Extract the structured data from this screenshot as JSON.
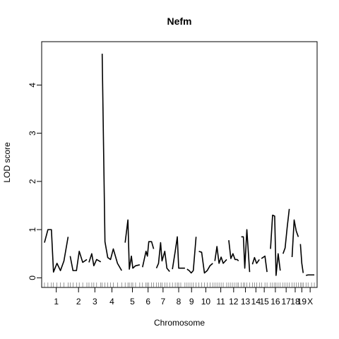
{
  "chart_data": {
    "type": "line",
    "title": "Nefm",
    "xlabel": "Chromosome",
    "ylabel": "LOD score",
    "ylim": [
      -0.2,
      4.9
    ],
    "y_ticks": [
      0,
      1,
      2,
      3,
      4
    ],
    "grid": false,
    "legend": "none",
    "line_color": "#000000",
    "chromosomes": [
      {
        "label": "1",
        "start": 1,
        "end": 35,
        "x": [
          1,
          6,
          11,
          14,
          19,
          24,
          29,
          35
        ],
        "y": [
          0.73,
          1.0,
          1.0,
          0.12,
          0.3,
          0.15,
          0.35,
          0.85
        ]
      },
      {
        "label": "2",
        "start": 38,
        "end": 62,
        "x": [
          38,
          42,
          47,
          51,
          56,
          62
        ],
        "y": [
          0.45,
          0.15,
          0.15,
          0.55,
          0.32,
          0.38
        ]
      },
      {
        "label": "3",
        "start": 65,
        "end": 82,
        "x": [
          65,
          69,
          72,
          76,
          82
        ],
        "y": [
          0.32,
          0.5,
          0.25,
          0.38,
          0.33
        ]
      },
      {
        "label": "4",
        "start": 84,
        "end": 112,
        "x": [
          84,
          88,
          92,
          96,
          100,
          106,
          112
        ],
        "y": [
          4.65,
          0.75,
          0.42,
          0.38,
          0.6,
          0.3,
          0.15
        ]
      },
      {
        "label": "5",
        "start": 117,
        "end": 138,
        "x": [
          117,
          121,
          123,
          126,
          128,
          132,
          138
        ],
        "y": [
          0.73,
          1.2,
          0.18,
          0.45,
          0.2,
          0.25,
          0.27
        ]
      },
      {
        "label": "6",
        "start": 142,
        "end": 158,
        "x": [
          142,
          147,
          149,
          151,
          155,
          158
        ],
        "y": [
          0.22,
          0.55,
          0.45,
          0.75,
          0.75,
          0.6
        ]
      },
      {
        "label": "7",
        "start": 162,
        "end": 181,
        "x": [
          162,
          165,
          168,
          170,
          174,
          177,
          181
        ],
        "y": [
          0.2,
          0.3,
          0.73,
          0.35,
          0.55,
          0.2,
          0.13
        ]
      },
      {
        "label": "8",
        "start": 185,
        "end": 203,
        "x": [
          185,
          189,
          192,
          194,
          197,
          203
        ],
        "y": [
          0.18,
          0.55,
          0.85,
          0.2,
          0.2,
          0.2
        ]
      },
      {
        "label": "9",
        "start": 206,
        "end": 219,
        "x": [
          206,
          209,
          212,
          215,
          219
        ],
        "y": [
          0.18,
          0.15,
          0.1,
          0.15,
          0.85
        ]
      },
      {
        "label": "10",
        "start": 223,
        "end": 243,
        "x": [
          223,
          227,
          231,
          235,
          239,
          243
        ],
        "y": [
          0.55,
          0.53,
          0.1,
          0.15,
          0.25,
          0.3
        ]
      },
      {
        "label": "11",
        "start": 246,
        "end": 263,
        "x": [
          246,
          249,
          252,
          255,
          258,
          263
        ],
        "y": [
          0.35,
          0.65,
          0.3,
          0.43,
          0.3,
          0.38
        ]
      },
      {
        "label": "12",
        "start": 266,
        "end": 280,
        "x": [
          266,
          269,
          272,
          275,
          278,
          280
        ],
        "y": [
          0.78,
          0.4,
          0.5,
          0.38,
          0.38,
          0.35
        ]
      },
      {
        "label": "13",
        "start": 284,
        "end": 296,
        "x": [
          284,
          287,
          289,
          292,
          296
        ],
        "y": [
          0.85,
          0.85,
          0.2,
          1.0,
          0.12
        ]
      },
      {
        "label": "14",
        "start": 300,
        "end": 310,
        "x": [
          300,
          303,
          306,
          310
        ],
        "y": [
          0.28,
          0.42,
          0.3,
          0.38
        ]
      },
      {
        "label": "15",
        "start": 313,
        "end": 321,
        "x": [
          313,
          318,
          321
        ],
        "y": [
          0.4,
          0.45,
          0.12
        ]
      },
      {
        "label": "16",
        "start": 326,
        "end": 340,
        "x": [
          326,
          329,
          332,
          334,
          337,
          340
        ],
        "y": [
          0.6,
          1.3,
          1.28,
          0.05,
          0.5,
          0.15
        ]
      },
      {
        "label": "17",
        "start": 344,
        "end": 353,
        "x": [
          344,
          347,
          350,
          353
        ],
        "y": [
          0.5,
          0.62,
          1.05,
          1.43
        ]
      },
      {
        "label": "18",
        "start": 357,
        "end": 366,
        "x": [
          357,
          360,
          363,
          366
        ],
        "y": [
          0.43,
          1.2,
          0.97,
          0.85
        ]
      },
      {
        "label": "19",
        "start": 369,
        "end": 373,
        "x": [
          369,
          371,
          373
        ],
        "y": [
          0.7,
          0.3,
          0.1
        ]
      },
      {
        "label": "X",
        "start": 377,
        "end": 389,
        "x": [
          377,
          380,
          385,
          389
        ],
        "y": [
          0.05,
          0.06,
          0.06,
          0.06
        ]
      }
    ],
    "markers": [
      1,
      6,
      11,
      14,
      19,
      24,
      29,
      35,
      38,
      42,
      47,
      51,
      56,
      62,
      65,
      69,
      72,
      76,
      82,
      84,
      88,
      92,
      96,
      100,
      106,
      112,
      117,
      121,
      123,
      126,
      128,
      132,
      138,
      142,
      147,
      149,
      151,
      155,
      158,
      162,
      165,
      168,
      170,
      174,
      177,
      181,
      185,
      189,
      192,
      194,
      197,
      203,
      206,
      209,
      212,
      215,
      219,
      223,
      227,
      231,
      235,
      239,
      243,
      246,
      249,
      252,
      255,
      258,
      263,
      266,
      269,
      272,
      275,
      278,
      280,
      284,
      287,
      289,
      292,
      296,
      300,
      303,
      306,
      310,
      313,
      318,
      321,
      326,
      329,
      332,
      334,
      337,
      340,
      344,
      347,
      350,
      353,
      357,
      360,
      363,
      366,
      369,
      371,
      373,
      377,
      380,
      385,
      389
    ]
  }
}
